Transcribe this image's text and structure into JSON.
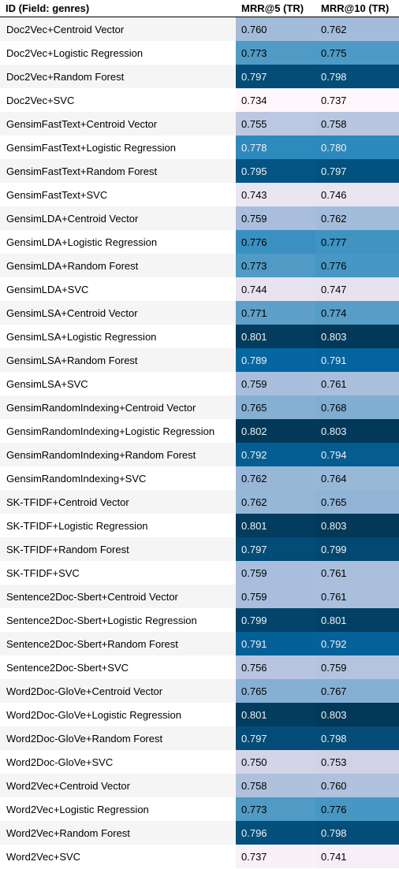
{
  "chart_data": {
    "type": "table",
    "columns": [
      "ID (Field: genres)",
      "MRR@5 (TR)",
      "MRR@10 (TR)"
    ],
    "rows": [
      {
        "id": "Doc2Vec+Centroid Vector",
        "mrr5": "0.760",
        "mrr10": "0.762"
      },
      {
        "id": "Doc2Vec+Logistic Regression",
        "mrr5": "0.773",
        "mrr10": "0.775"
      },
      {
        "id": "Doc2Vec+Random Forest",
        "mrr5": "0.797",
        "mrr10": "0.798"
      },
      {
        "id": "Doc2Vec+SVC",
        "mrr5": "0.734",
        "mrr10": "0.737"
      },
      {
        "id": "GensimFastText+Centroid Vector",
        "mrr5": "0.755",
        "mrr10": "0.758"
      },
      {
        "id": "GensimFastText+Logistic Regression",
        "mrr5": "0.778",
        "mrr10": "0.780"
      },
      {
        "id": "GensimFastText+Random Forest",
        "mrr5": "0.795",
        "mrr10": "0.797"
      },
      {
        "id": "GensimFastText+SVC",
        "mrr5": "0.743",
        "mrr10": "0.746"
      },
      {
        "id": "GensimLDA+Centroid Vector",
        "mrr5": "0.759",
        "mrr10": "0.762"
      },
      {
        "id": "GensimLDA+Logistic Regression",
        "mrr5": "0.776",
        "mrr10": "0.777"
      },
      {
        "id": "GensimLDA+Random Forest",
        "mrr5": "0.773",
        "mrr10": "0.776"
      },
      {
        "id": "GensimLDA+SVC",
        "mrr5": "0.744",
        "mrr10": "0.747"
      },
      {
        "id": "GensimLSA+Centroid Vector",
        "mrr5": "0.771",
        "mrr10": "0.774"
      },
      {
        "id": "GensimLSA+Logistic Regression",
        "mrr5": "0.801",
        "mrr10": "0.803"
      },
      {
        "id": "GensimLSA+Random Forest",
        "mrr5": "0.789",
        "mrr10": "0.791"
      },
      {
        "id": "GensimLSA+SVC",
        "mrr5": "0.759",
        "mrr10": "0.761"
      },
      {
        "id": "GensimRandomIndexing+Centroid Vector",
        "mrr5": "0.765",
        "mrr10": "0.768"
      },
      {
        "id": "GensimRandomIndexing+Logistic Regression",
        "mrr5": "0.802",
        "mrr10": "0.803"
      },
      {
        "id": "GensimRandomIndexing+Random Forest",
        "mrr5": "0.792",
        "mrr10": "0.794"
      },
      {
        "id": "GensimRandomIndexing+SVC",
        "mrr5": "0.762",
        "mrr10": "0.764"
      },
      {
        "id": "SK-TFIDF+Centroid Vector",
        "mrr5": "0.762",
        "mrr10": "0.765"
      },
      {
        "id": "SK-TFIDF+Logistic Regression",
        "mrr5": "0.801",
        "mrr10": "0.803"
      },
      {
        "id": "SK-TFIDF+Random Forest",
        "mrr5": "0.797",
        "mrr10": "0.799"
      },
      {
        "id": "SK-TFIDF+SVC",
        "mrr5": "0.759",
        "mrr10": "0.761"
      },
      {
        "id": "Sentence2Doc-Sbert+Centroid Vector",
        "mrr5": "0.759",
        "mrr10": "0.761"
      },
      {
        "id": "Sentence2Doc-Sbert+Logistic Regression",
        "mrr5": "0.799",
        "mrr10": "0.801"
      },
      {
        "id": "Sentence2Doc-Sbert+Random Forest",
        "mrr5": "0.791",
        "mrr10": "0.792"
      },
      {
        "id": "Sentence2Doc-Sbert+SVC",
        "mrr5": "0.756",
        "mrr10": "0.759"
      },
      {
        "id": "Word2Doc-GloVe+Centroid Vector",
        "mrr5": "0.765",
        "mrr10": "0.767"
      },
      {
        "id": "Word2Doc-GloVe+Logistic Regression",
        "mrr5": "0.801",
        "mrr10": "0.803"
      },
      {
        "id": "Word2Doc-GloVe+Random Forest",
        "mrr5": "0.797",
        "mrr10": "0.798"
      },
      {
        "id": "Word2Doc-GloVe+SVC",
        "mrr5": "0.750",
        "mrr10": "0.753"
      },
      {
        "id": "Word2Vec+Centroid Vector",
        "mrr5": "0.758",
        "mrr10": "0.760"
      },
      {
        "id": "Word2Vec+Logistic Regression",
        "mrr5": "0.773",
        "mrr10": "0.776"
      },
      {
        "id": "Word2Vec+Random Forest",
        "mrr5": "0.796",
        "mrr10": "0.798"
      },
      {
        "id": "Word2Vec+SVC",
        "mrr5": "0.737",
        "mrr10": "0.741"
      }
    ],
    "colormap": [
      "#fff7fb",
      "#ece7f2",
      "#d0d1e6",
      "#a6bddb",
      "#74a9cf",
      "#3690c0",
      "#0570b0",
      "#045a8d",
      "#023858"
    ],
    "dark_text_color": "#000000",
    "light_text_color": "#f1f1f1"
  }
}
